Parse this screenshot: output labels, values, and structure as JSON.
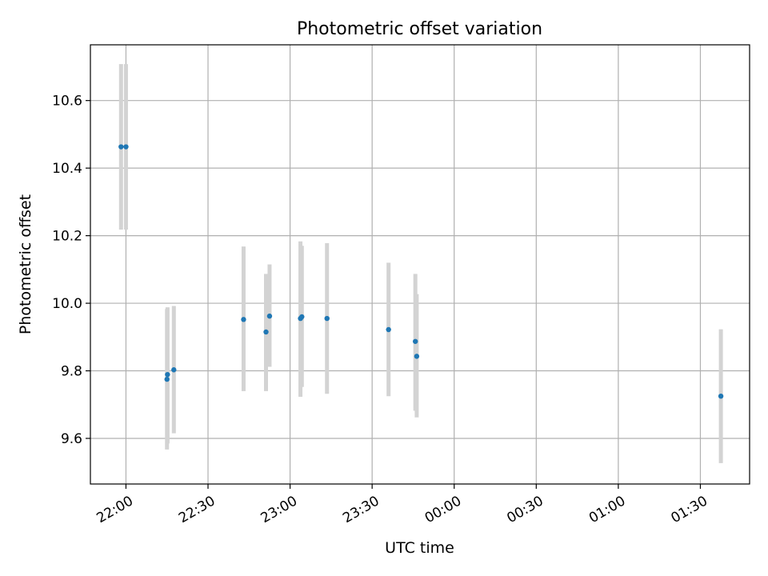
{
  "chart_data": {
    "type": "scatter",
    "title": "Photometric offset variation",
    "xlabel": "UTC time",
    "ylabel": "Photometric offset",
    "x_unit": "minutes after 22:00 UTC",
    "xlim": [
      -13,
      228
    ],
    "ylim": [
      9.465,
      10.765
    ],
    "x_ticks": [
      {
        "value": 0,
        "label": "22:00"
      },
      {
        "value": 30,
        "label": "22:30"
      },
      {
        "value": 60,
        "label": "23:00"
      },
      {
        "value": 90,
        "label": "23:30"
      },
      {
        "value": 120,
        "label": "00:00"
      },
      {
        "value": 150,
        "label": "00:30"
      },
      {
        "value": 180,
        "label": "01:00"
      },
      {
        "value": 210,
        "label": "01:30"
      }
    ],
    "y_ticks": [
      {
        "value": 9.6,
        "label": "9.6"
      },
      {
        "value": 9.8,
        "label": "9.8"
      },
      {
        "value": 10.0,
        "label": "10.0"
      },
      {
        "value": 10.2,
        "label": "10.2"
      },
      {
        "value": 10.4,
        "label": "10.4"
      },
      {
        "value": 10.6,
        "label": "10.6"
      }
    ],
    "grid": true,
    "marker_color": "#1f77b4",
    "errorbar_color": "#d3d3d3",
    "points": [
      {
        "x": -1.8,
        "y": 10.463,
        "ymin": 10.218,
        "ymax": 10.708
      },
      {
        "x": 0.0,
        "y": 10.463,
        "ymin": 10.218,
        "ymax": 10.708
      },
      {
        "x": 15.0,
        "y": 9.775,
        "ymin": 9.567,
        "ymax": 9.983
      },
      {
        "x": 15.2,
        "y": 9.789,
        "ymin": 9.585,
        "ymax": 9.988
      },
      {
        "x": 17.5,
        "y": 9.803,
        "ymin": 9.615,
        "ymax": 9.992
      },
      {
        "x": 43.0,
        "y": 9.952,
        "ymin": 9.74,
        "ymax": 10.168
      },
      {
        "x": 51.2,
        "y": 9.915,
        "ymin": 9.74,
        "ymax": 10.087
      },
      {
        "x": 52.5,
        "y": 9.962,
        "ymin": 9.812,
        "ymax": 10.115
      },
      {
        "x": 63.8,
        "y": 9.955,
        "ymin": 9.723,
        "ymax": 10.183
      },
      {
        "x": 64.3,
        "y": 9.96,
        "ymin": 9.752,
        "ymax": 10.17
      },
      {
        "x": 73.5,
        "y": 9.955,
        "ymin": 9.732,
        "ymax": 10.178
      },
      {
        "x": 96.0,
        "y": 9.922,
        "ymin": 9.725,
        "ymax": 10.12
      },
      {
        "x": 105.8,
        "y": 9.887,
        "ymin": 9.682,
        "ymax": 10.087
      },
      {
        "x": 106.3,
        "y": 9.843,
        "ymin": 9.662,
        "ymax": 10.027
      },
      {
        "x": 217.5,
        "y": 9.725,
        "ymin": 9.527,
        "ymax": 9.923
      }
    ]
  }
}
